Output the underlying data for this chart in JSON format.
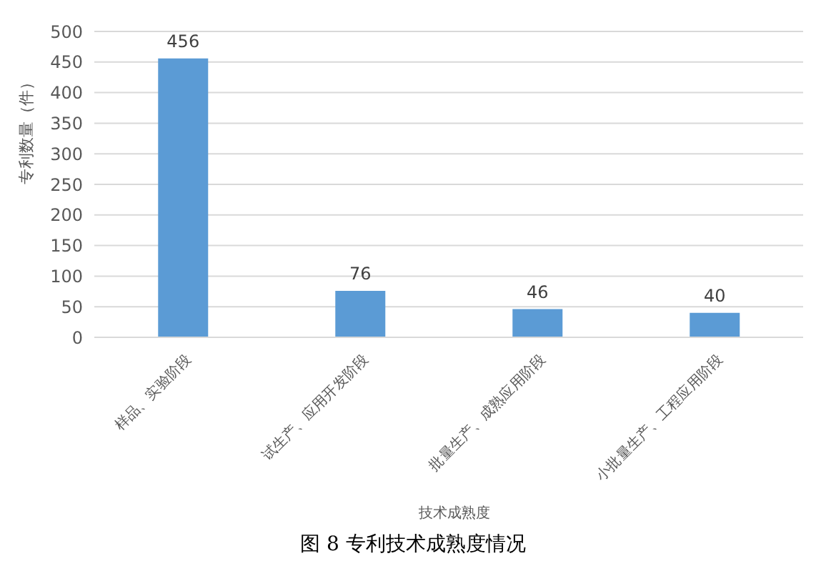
{
  "chart_data": {
    "type": "bar",
    "categories": [
      "样品、实验阶段",
      "试生产、应用开发阶段",
      "批量生产、成熟应用阶段",
      "小批量生产、工程应用阶段"
    ],
    "values": [
      456,
      76,
      46,
      40
    ],
    "color": "#5b9bd5",
    "xlabel": "技术成熟度",
    "ylabel": "专利数量（件）",
    "ylim": [
      0,
      500
    ],
    "yticks": [
      0,
      50,
      100,
      150,
      200,
      250,
      300,
      350,
      400,
      450,
      500
    ],
    "grid": "y",
    "data_labels": true,
    "annotations": [
      "图 8 专利技术成熟度情况"
    ]
  }
}
